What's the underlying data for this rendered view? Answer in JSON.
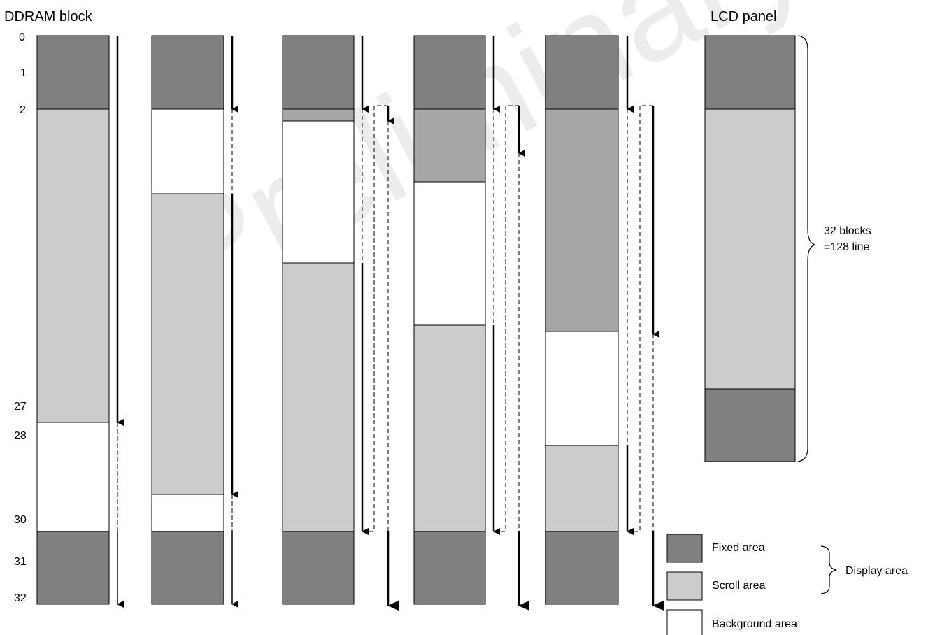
{
  "header": {
    "ddram_title": "DDRAM block",
    "lcd_title": "LCD panel"
  },
  "block_labels": [
    "0",
    "1",
    "2",
    "27",
    "28",
    "30",
    "31",
    "32"
  ],
  "lcd_note": {
    "line1": "32 blocks",
    "line2": "=128 line"
  },
  "legend": {
    "fixed": "Fixed area",
    "scroll": "Scroll area",
    "background": "Background area",
    "display": "Display area"
  },
  "colors": {
    "fixed": "#808080",
    "scroll": "#cccccc",
    "scroll_active": "#a6a6a6",
    "background": "#ffffff",
    "watermark": "#eeeeee"
  },
  "watermark_text": "Preliminary"
}
